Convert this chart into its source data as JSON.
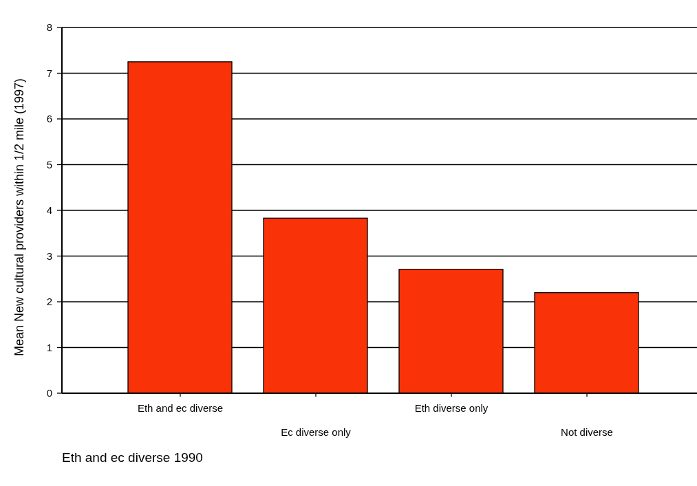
{
  "chart_data": {
    "type": "bar",
    "xlabel": "Eth and ec diverse 1990",
    "ylabel": "Mean New cultural providers within 1/2 mile (1997)",
    "categories": [
      "Eth and ec diverse",
      "Ec diverse only",
      "Eth diverse only",
      "Not diverse"
    ],
    "values": [
      7.25,
      3.83,
      2.71,
      2.2
    ],
    "color": "#f93208",
    "ylim": [
      0,
      8
    ],
    "yticks": [
      0,
      1,
      2,
      3,
      4,
      5,
      6,
      7,
      8
    ],
    "grid": "y"
  }
}
